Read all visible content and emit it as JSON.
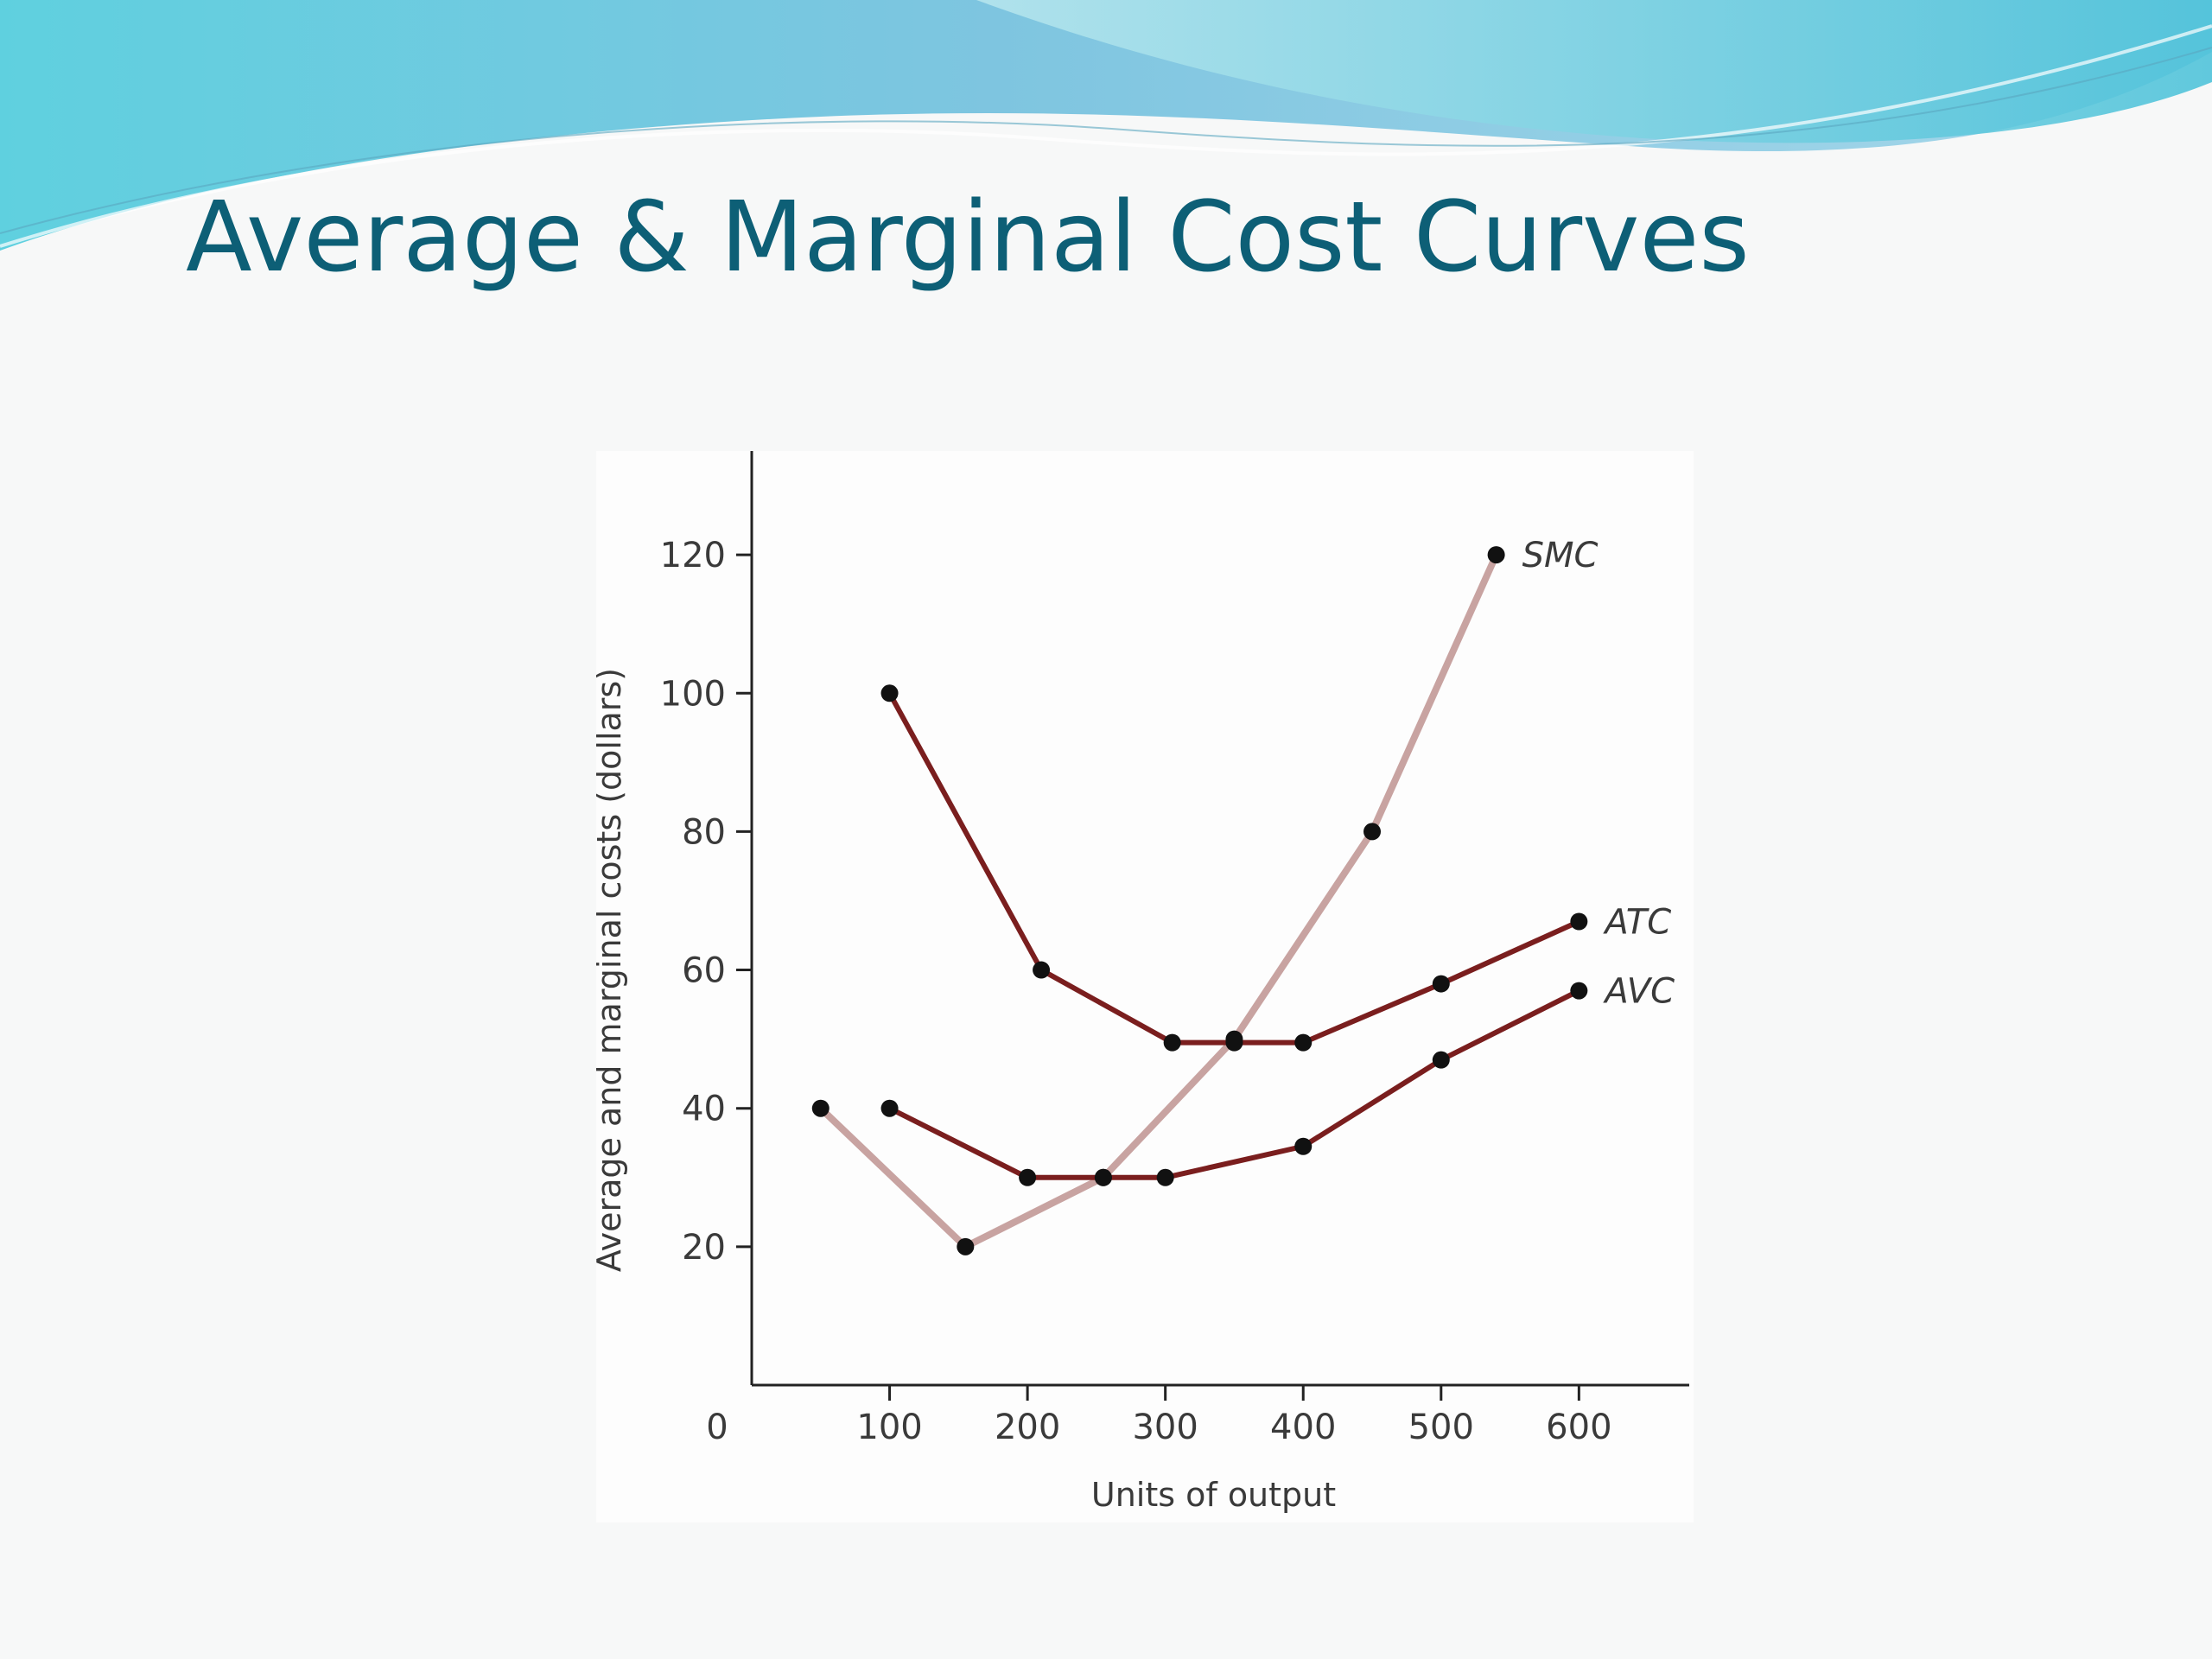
{
  "slide": {
    "title": "Average & Marginal Cost Curves"
  },
  "colors": {
    "title": "#0d5f76",
    "curve_dark": "#7a1e1e",
    "curve_light": "#c8a3a1",
    "point": "#111111",
    "axis": "#222222"
  },
  "chart_data": {
    "type": "line",
    "xlabel": "Units of output",
    "ylabel": "Average and marginal costs (dollars)",
    "xlim": [
      0,
      680
    ],
    "ylim": [
      0,
      135
    ],
    "x_ticks": [
      100,
      200,
      300,
      400,
      500,
      600
    ],
    "x_tick_labels": [
      "100",
      "200",
      "300",
      "400",
      "500",
      "600"
    ],
    "y_ticks": [
      20,
      40,
      60,
      80,
      100,
      120
    ],
    "y_tick_labels": [
      "20",
      "40",
      "60",
      "80",
      "100",
      "120"
    ],
    "origin_label": "0",
    "grid": false,
    "legend": "none (series labeled at line ends)",
    "series": [
      {
        "name": "SMC",
        "style": "light",
        "x": [
          50,
          155,
          255,
          350,
          450,
          540
        ],
        "y": [
          40,
          20,
          30,
          50,
          80,
          120
        ]
      },
      {
        "name": "ATC",
        "style": "dark",
        "x": [
          100,
          210,
          305,
          350,
          400,
          500,
          600
        ],
        "y": [
          100,
          60,
          49.5,
          49.5,
          49.5,
          58,
          67
        ]
      },
      {
        "name": "AVC",
        "style": "dark",
        "x": [
          100,
          200,
          255,
          300,
          400,
          500,
          600
        ],
        "y": [
          40,
          30,
          30,
          30,
          34.5,
          47,
          57
        ]
      }
    ]
  }
}
